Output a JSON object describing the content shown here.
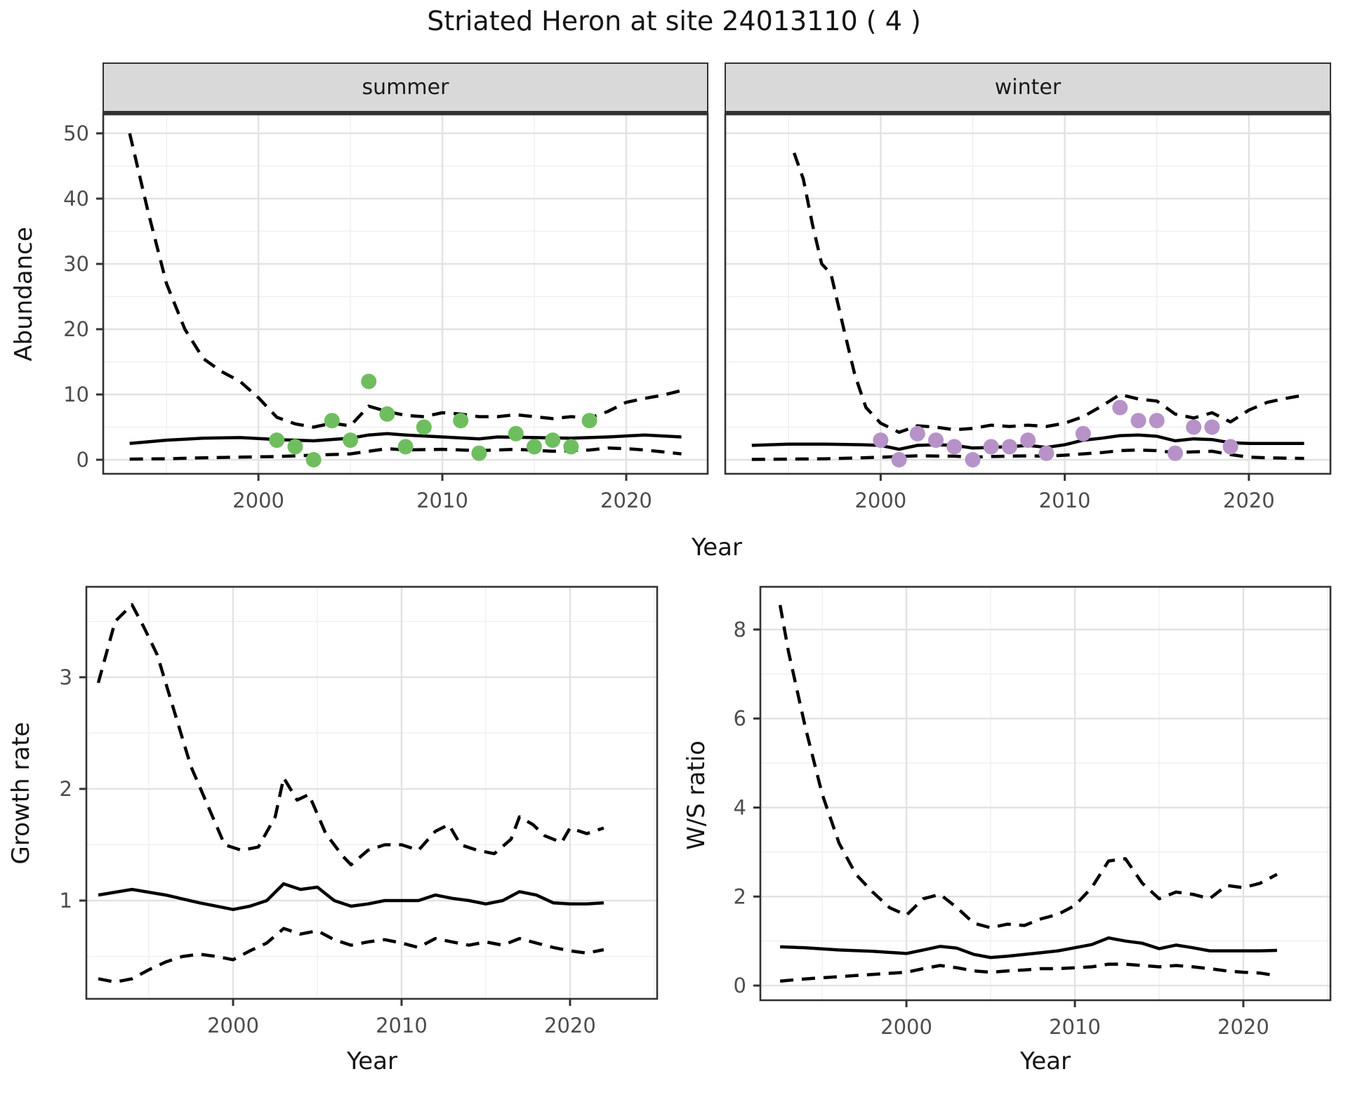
{
  "title": "Striated Heron at site 24013110 ( 4 )",
  "colors": {
    "summer_point": "#6ebe5f",
    "winter_point": "#b692c8",
    "line": "#000000",
    "strip_bg": "#d9d9d9",
    "panel_border": "#333333",
    "grid_major": "#e2e2e2",
    "grid_minor": "#efefef",
    "tick_text": "#4d4d4d"
  },
  "chart_data": [
    {
      "id": "abundance-summer",
      "type": "line+scatter",
      "facet": "summer",
      "xlabel": "Year",
      "ylabel": "Abundance",
      "xlim": [
        1991.56,
        2024.43
      ],
      "ylim": [
        -2.15,
        52.9
      ],
      "xticks": [
        2000,
        2010,
        2020
      ],
      "yticks": [
        0,
        10,
        20,
        30,
        40,
        50
      ],
      "xminor": [
        1995,
        2005,
        2015
      ],
      "yminor": [
        5,
        15,
        25,
        35,
        45
      ],
      "show_yaxis": true,
      "points": {
        "color": "#6ebe5f",
        "years": [
          2001,
          2002,
          2003,
          2004,
          2005,
          2006,
          2007,
          2008,
          2009,
          2011,
          2012,
          2014,
          2015,
          2016,
          2017,
          2018
        ],
        "values": [
          3,
          2,
          0,
          6,
          3,
          12,
          7,
          2,
          5,
          6,
          1,
          4,
          2,
          3,
          2,
          6
        ]
      },
      "series": [
        {
          "name": "fit",
          "style": "solid",
          "x": [
            1993,
            1995,
            1997,
            1999,
            2001,
            2003,
            2005,
            2006,
            2007,
            2008,
            2010,
            2012,
            2013,
            2015,
            2017,
            2019,
            2021,
            2023
          ],
          "y": [
            2.5,
            3.0,
            3.3,
            3.4,
            3.1,
            2.9,
            3.3,
            3.8,
            4.0,
            3.8,
            3.5,
            3.2,
            3.5,
            3.4,
            3.3,
            3.5,
            3.8,
            3.5
          ]
        },
        {
          "name": "ci-upper",
          "style": "dashed",
          "x": [
            1993,
            1994,
            1995,
            1996,
            1997,
            1998,
            1999,
            2000,
            2001,
            2002,
            2003,
            2004,
            2005,
            2006,
            2007,
            2008,
            2009,
            2010,
            2011,
            2012,
            2013,
            2014,
            2015,
            2016,
            2017,
            2018,
            2019,
            2020,
            2021,
            2022,
            2023
          ],
          "y": [
            50,
            38,
            27,
            20,
            15.5,
            13.5,
            12,
            9.5,
            6.5,
            5.5,
            5,
            5.6,
            5.2,
            8.2,
            7.4,
            6.8,
            6.6,
            7.2,
            7,
            6.6,
            6.6,
            6.9,
            6.6,
            6.3,
            6.6,
            6.4,
            7.4,
            8.8,
            9.4,
            9.9,
            10.6
          ]
        },
        {
          "name": "ci-lower",
          "style": "dashed",
          "x": [
            1993,
            1995,
            1997,
            1999,
            2001,
            2003,
            2005,
            2006,
            2007,
            2008,
            2010,
            2012,
            2014,
            2016,
            2018,
            2019,
            2020,
            2021,
            2022,
            2023
          ],
          "y": [
            0.1,
            0.15,
            0.3,
            0.4,
            0.5,
            0.7,
            0.9,
            1.3,
            1.7,
            1.5,
            1.6,
            1.4,
            1.6,
            1.3,
            1.5,
            1.8,
            1.7,
            1.5,
            1.2,
            0.9
          ]
        }
      ]
    },
    {
      "id": "abundance-winter",
      "type": "line+scatter",
      "facet": "winter",
      "xlabel": "Year",
      "ylabel": "Abundance",
      "xlim": [
        1991.56,
        2024.43
      ],
      "ylim": [
        -2.15,
        52.9
      ],
      "xticks": [
        2000,
        2010,
        2020
      ],
      "yticks": [
        0,
        10,
        20,
        30,
        40,
        50
      ],
      "xminor": [
        1995,
        2005,
        2015
      ],
      "yminor": [
        5,
        15,
        25,
        35,
        45
      ],
      "show_yaxis": false,
      "points": {
        "color": "#b692c8",
        "years": [
          2000,
          2001,
          2002,
          2003,
          2004,
          2005,
          2006,
          2007,
          2008,
          2009,
          2011,
          2013,
          2014,
          2015,
          2016,
          2017,
          2018,
          2019
        ],
        "values": [
          3,
          0,
          4,
          3,
          2,
          0,
          2,
          2,
          3,
          1,
          4,
          8,
          6,
          6,
          1,
          5,
          5,
          2
        ]
      },
      "series": [
        {
          "name": "fit",
          "style": "solid",
          "x": [
            1993,
            1995,
            1997,
            1999,
            2000,
            2001,
            2002,
            2003,
            2004,
            2005,
            2006,
            2007,
            2008,
            2009,
            2010,
            2011,
            2012,
            2013,
            2014,
            2015,
            2016,
            2017,
            2018,
            2019,
            2020,
            2021,
            2022,
            2023
          ],
          "y": [
            2.2,
            2.4,
            2.4,
            2.3,
            2.2,
            1.6,
            2.2,
            2.3,
            2.2,
            1.8,
            1.9,
            2.0,
            2.2,
            1.9,
            2.3,
            3.0,
            3.3,
            3.7,
            3.8,
            3.6,
            2.9,
            3.2,
            3.1,
            2.6,
            2.5,
            2.5,
            2.5,
            2.5
          ]
        },
        {
          "name": "ci-upper",
          "style": "dashed",
          "x": [
            1995.3,
            1995.8,
            1996.3,
            1996.8,
            1997.3,
            1998,
            1998.6,
            1999.2,
            2000,
            2001,
            2002,
            2003,
            2004,
            2005,
            2006,
            2007,
            2008,
            2009,
            2010,
            2011,
            2012,
            2013,
            2014,
            2015,
            2016,
            2017,
            2018,
            2019,
            2020,
            2021,
            2022,
            2023
          ],
          "y": [
            47,
            43,
            36,
            30,
            28.5,
            20,
            13,
            8,
            5.6,
            4.2,
            5.2,
            5,
            4.6,
            4.8,
            5.3,
            5.1,
            5.3,
            5.1,
            5.6,
            6.6,
            8.2,
            10,
            9.3,
            9,
            7,
            6.4,
            7.2,
            5.8,
            7.6,
            8.8,
            9.4,
            9.9
          ]
        },
        {
          "name": "ci-lower",
          "style": "dashed",
          "x": [
            1993,
            1995,
            1997,
            1999,
            2000,
            2002,
            2004,
            2005,
            2006,
            2008,
            2009,
            2010,
            2011,
            2012,
            2013,
            2014,
            2015,
            2016,
            2017,
            2018,
            2019,
            2020,
            2021,
            2022,
            2023
          ],
          "y": [
            0.05,
            0.1,
            0.15,
            0.3,
            0.4,
            0.6,
            0.55,
            0.4,
            0.5,
            0.6,
            0.55,
            0.7,
            0.9,
            1.1,
            1.4,
            1.5,
            1.4,
            1.1,
            1.2,
            1.3,
            0.8,
            0.4,
            0.3,
            0.25,
            0.2
          ]
        }
      ]
    },
    {
      "id": "growth-rate",
      "type": "line",
      "facet": "",
      "xlabel": "Year",
      "ylabel": "Growth rate",
      "xlim": [
        1991.29,
        2025.17
      ],
      "ylim": [
        0.12,
        3.81
      ],
      "xticks": [
        2000,
        2010,
        2020
      ],
      "yticks": [
        1,
        2,
        3
      ],
      "xminor": [
        1995,
        2005,
        2015,
        2025
      ],
      "yminor": [
        0.5,
        1.5,
        2.5,
        3.5
      ],
      "show_yaxis": true,
      "series": [
        {
          "name": "fit",
          "style": "solid",
          "x": [
            1992,
            1994,
            1996,
            1998,
            2000,
            2001,
            2002,
            2003,
            2004,
            2005,
            2006,
            2007,
            2008,
            2009,
            2010,
            2011,
            2012,
            2013,
            2014,
            2015,
            2016,
            2017,
            2018,
            2019,
            2020,
            2021,
            2022
          ],
          "y": [
            1.05,
            1.1,
            1.05,
            0.98,
            0.92,
            0.95,
            1.0,
            1.15,
            1.1,
            1.12,
            1.0,
            0.95,
            0.97,
            1.0,
            1.0,
            1.0,
            1.05,
            1.02,
            1.0,
            0.97,
            1.0,
            1.08,
            1.05,
            0.98,
            0.97,
            0.97,
            0.98
          ]
        },
        {
          "name": "ci-upper",
          "style": "dashed",
          "x": [
            1992,
            1993,
            1994,
            1994.7,
            1995.5,
            1996.5,
            1997.5,
            1998.5,
            1999.5,
            2000.5,
            2001.5,
            2002.5,
            2003,
            2003.8,
            2004.5,
            2005.5,
            2006.5,
            2007,
            2008,
            2009,
            2010,
            2011,
            2012,
            2012.8,
            2013.5,
            2014.5,
            2015.5,
            2016.5,
            2017,
            2017.8,
            2018.5,
            2019.5,
            2020,
            2021,
            2022
          ],
          "y": [
            2.95,
            3.5,
            3.65,
            3.45,
            3.2,
            2.7,
            2.2,
            1.85,
            1.5,
            1.45,
            1.48,
            1.75,
            2.1,
            1.9,
            1.95,
            1.6,
            1.4,
            1.32,
            1.45,
            1.5,
            1.5,
            1.45,
            1.62,
            1.68,
            1.5,
            1.45,
            1.42,
            1.55,
            1.75,
            1.68,
            1.58,
            1.52,
            1.65,
            1.6,
            1.65
          ]
        },
        {
          "name": "ci-lower",
          "style": "dashed",
          "x": [
            1992,
            1993,
            1994,
            1995,
            1996,
            1997,
            1998,
            1999,
            2000,
            2001,
            2002,
            2003,
            2004,
            2005,
            2006,
            2007,
            2008,
            2009,
            2010,
            2011,
            2012,
            2013,
            2014,
            2015,
            2016,
            2017,
            2018,
            2019,
            2020,
            2021,
            2022
          ],
          "y": [
            0.3,
            0.27,
            0.3,
            0.38,
            0.45,
            0.5,
            0.52,
            0.5,
            0.47,
            0.55,
            0.62,
            0.75,
            0.7,
            0.73,
            0.65,
            0.6,
            0.63,
            0.65,
            0.62,
            0.58,
            0.66,
            0.63,
            0.6,
            0.63,
            0.6,
            0.66,
            0.62,
            0.58,
            0.55,
            0.53,
            0.56
          ]
        }
      ]
    },
    {
      "id": "ws-ratio",
      "type": "line",
      "facet": "",
      "xlabel": "Year",
      "ylabel": "W/S ratio",
      "xlim": [
        1991.33,
        2025.17
      ],
      "ylim": [
        -0.33,
        8.96
      ],
      "xticks": [
        2000,
        2010,
        2020
      ],
      "yticks": [
        0,
        2,
        4,
        6,
        8
      ],
      "xminor": [
        1995,
        2005,
        2015,
        2025
      ],
      "yminor": [
        1,
        3,
        5,
        7
      ],
      "show_yaxis": true,
      "series": [
        {
          "name": "fit",
          "style": "solid",
          "x": [
            1992.5,
            1994,
            1996,
            1998,
            2000,
            2001,
            2002,
            2003,
            2004,
            2005,
            2006,
            2007,
            2008,
            2009,
            2010,
            2011,
            2012,
            2013,
            2014,
            2015,
            2016,
            2017,
            2018,
            2019,
            2020,
            2021,
            2022
          ],
          "y": [
            0.87,
            0.85,
            0.8,
            0.77,
            0.72,
            0.8,
            0.88,
            0.84,
            0.7,
            0.63,
            0.66,
            0.7,
            0.74,
            0.78,
            0.85,
            0.92,
            1.07,
            1.0,
            0.95,
            0.83,
            0.91,
            0.85,
            0.78,
            0.78,
            0.78,
            0.78,
            0.79
          ]
        },
        {
          "name": "ci-upper",
          "style": "dashed",
          "x": [
            1992.5,
            1993,
            1994,
            1995,
            1996,
            1997,
            1998,
            1999,
            2000,
            2001,
            2002,
            2003,
            2004,
            2005,
            2006,
            2007,
            2008,
            2009,
            2010,
            2011,
            2012,
            2013,
            2014,
            2015,
            2016,
            2017,
            2018,
            2019,
            2020,
            2021,
            2022
          ],
          "y": [
            8.55,
            7.5,
            5.8,
            4.3,
            3.2,
            2.5,
            2.1,
            1.75,
            1.58,
            1.95,
            2.05,
            1.75,
            1.4,
            1.3,
            1.38,
            1.35,
            1.5,
            1.6,
            1.8,
            2.2,
            2.8,
            2.85,
            2.3,
            1.95,
            2.1,
            2.05,
            1.95,
            2.25,
            2.2,
            2.3,
            2.5
          ]
        },
        {
          "name": "ci-lower",
          "style": "dashed",
          "x": [
            1992.5,
            1994,
            1996,
            1998,
            2000,
            2001,
            2002,
            2003,
            2004,
            2005,
            2006,
            2007,
            2008,
            2009,
            2010,
            2011,
            2012,
            2013,
            2014,
            2015,
            2016,
            2017,
            2018,
            2019,
            2020,
            2021,
            2022
          ],
          "y": [
            0.1,
            0.15,
            0.2,
            0.25,
            0.3,
            0.38,
            0.45,
            0.4,
            0.33,
            0.3,
            0.33,
            0.35,
            0.38,
            0.38,
            0.4,
            0.42,
            0.48,
            0.48,
            0.45,
            0.42,
            0.45,
            0.42,
            0.38,
            0.33,
            0.3,
            0.28,
            0.22
          ]
        }
      ]
    }
  ]
}
